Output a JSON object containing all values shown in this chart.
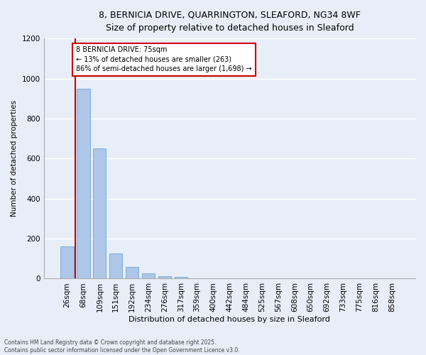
{
  "title_line1": "8, BERNICIA DRIVE, QUARRINGTON, SLEAFORD, NG34 8WF",
  "title_line2": "Size of property relative to detached houses in Sleaford",
  "xlabel": "Distribution of detached houses by size in Sleaford",
  "ylabel": "Number of detached properties",
  "categories": [
    "26sqm",
    "68sqm",
    "109sqm",
    "151sqm",
    "192sqm",
    "234sqm",
    "276sqm",
    "317sqm",
    "359sqm",
    "400sqm",
    "442sqm",
    "484sqm",
    "525sqm",
    "567sqm",
    "608sqm",
    "650sqm",
    "692sqm",
    "733sqm",
    "775sqm",
    "816sqm",
    "858sqm"
  ],
  "values": [
    160,
    950,
    650,
    125,
    60,
    28,
    14,
    8,
    0,
    0,
    0,
    0,
    0,
    0,
    0,
    0,
    0,
    0,
    0,
    0,
    0
  ],
  "bar_color": "#aec6e8",
  "bar_edge_color": "#5a9fd4",
  "vline_x": 0.5,
  "annotation_text": "8 BERNICIA DRIVE: 75sqm\n← 13% of detached houses are smaller (263)\n86% of semi-detached houses are larger (1,698) →",
  "annotation_box_color": "#ffffff",
  "annotation_box_edge": "#cc0000",
  "vline_color": "#cc0000",
  "ylim": [
    0,
    1200
  ],
  "yticks": [
    0,
    200,
    400,
    600,
    800,
    1000,
    1200
  ],
  "background_color": "#e8eef8",
  "grid_color": "#ffffff",
  "footer_line1": "Contains HM Land Registry data © Crown copyright and database right 2025.",
  "footer_line2": "Contains public sector information licensed under the Open Government Licence v3.0."
}
